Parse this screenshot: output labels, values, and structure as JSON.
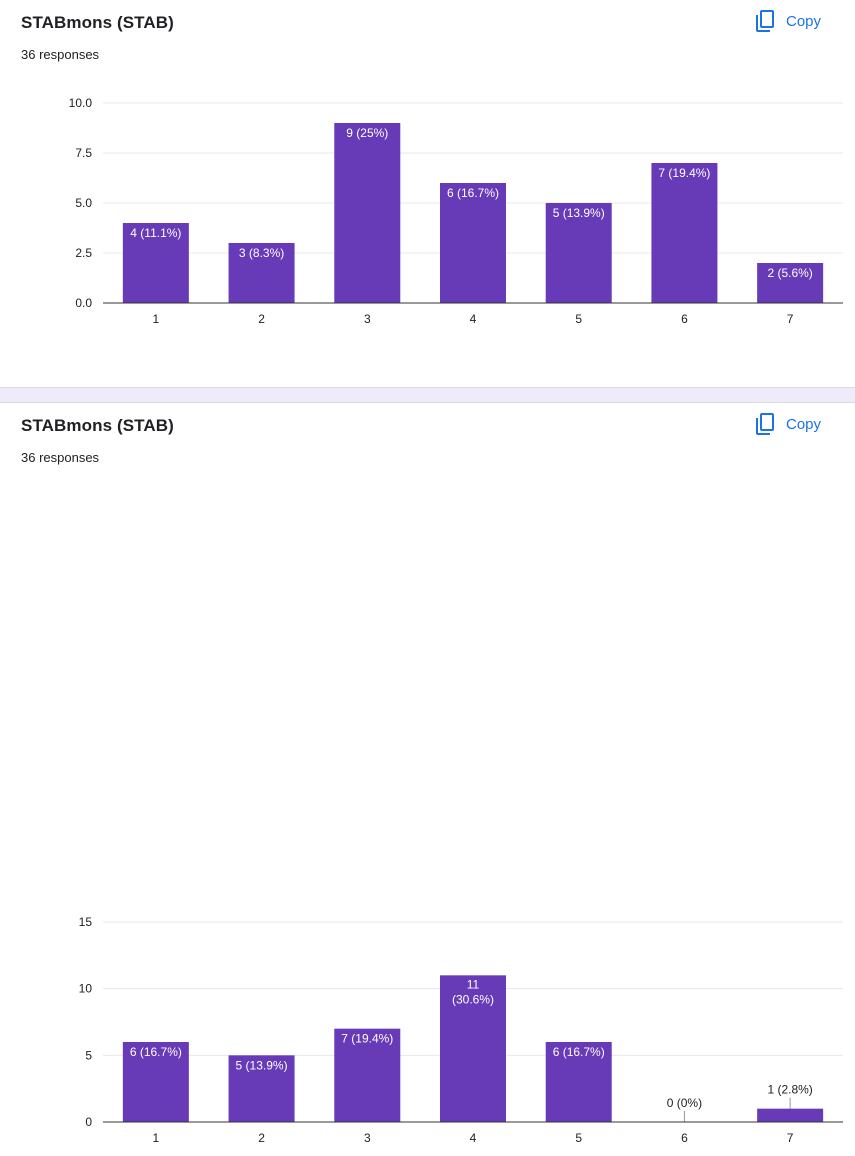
{
  "colors": {
    "bar": "#673ab7",
    "copy": "#1a73e8",
    "grid": "#e8e8e8",
    "axis": "#333333",
    "label_inside": "#ffffff",
    "label_outside": "#202124"
  },
  "questions": [
    {
      "title": "STABmons (STAB)",
      "responses": "36 responses",
      "copy_label": "Copy",
      "copy_icon": "copy-icon",
      "chart_data": {
        "type": "bar",
        "categories": [
          "1",
          "2",
          "3",
          "4",
          "5",
          "6",
          "7"
        ],
        "values": [
          4,
          3,
          9,
          6,
          5,
          7,
          2
        ],
        "data_labels": [
          "4 (11.1%)",
          "3 (8.3%)",
          "9 (25%)",
          "6 (16.7%)",
          "5 (13.9%)",
          "7 (19.4%)",
          "2 (5.6%)"
        ],
        "ylim": [
          0,
          10
        ],
        "yticks": [
          0,
          2.5,
          5,
          7.5,
          10
        ],
        "ytick_labels": [
          "0.0",
          "2.5",
          "5.0",
          "7.5",
          "10.0"
        ],
        "grid": true
      }
    },
    {
      "title": "STABmons (STAB)",
      "responses": "36 responses",
      "copy_label": "Copy",
      "copy_icon": "copy-icon",
      "chart_data": {
        "type": "bar",
        "categories": [
          "1",
          "2",
          "3",
          "4",
          "5",
          "6",
          "7"
        ],
        "values": [
          6,
          5,
          7,
          11,
          6,
          0,
          1
        ],
        "data_labels": [
          "6 (16.7%)",
          "5 (13.9%)",
          "7 (19.4%)",
          "11 (30.6%)",
          "6 (16.7%)",
          "0 (0%)",
          "1 (2.8%)"
        ],
        "ylim": [
          0,
          15
        ],
        "yticks": [
          0,
          5,
          10,
          15
        ],
        "ytick_labels": [
          "0",
          "5",
          "10",
          "15"
        ],
        "grid": true
      }
    }
  ]
}
